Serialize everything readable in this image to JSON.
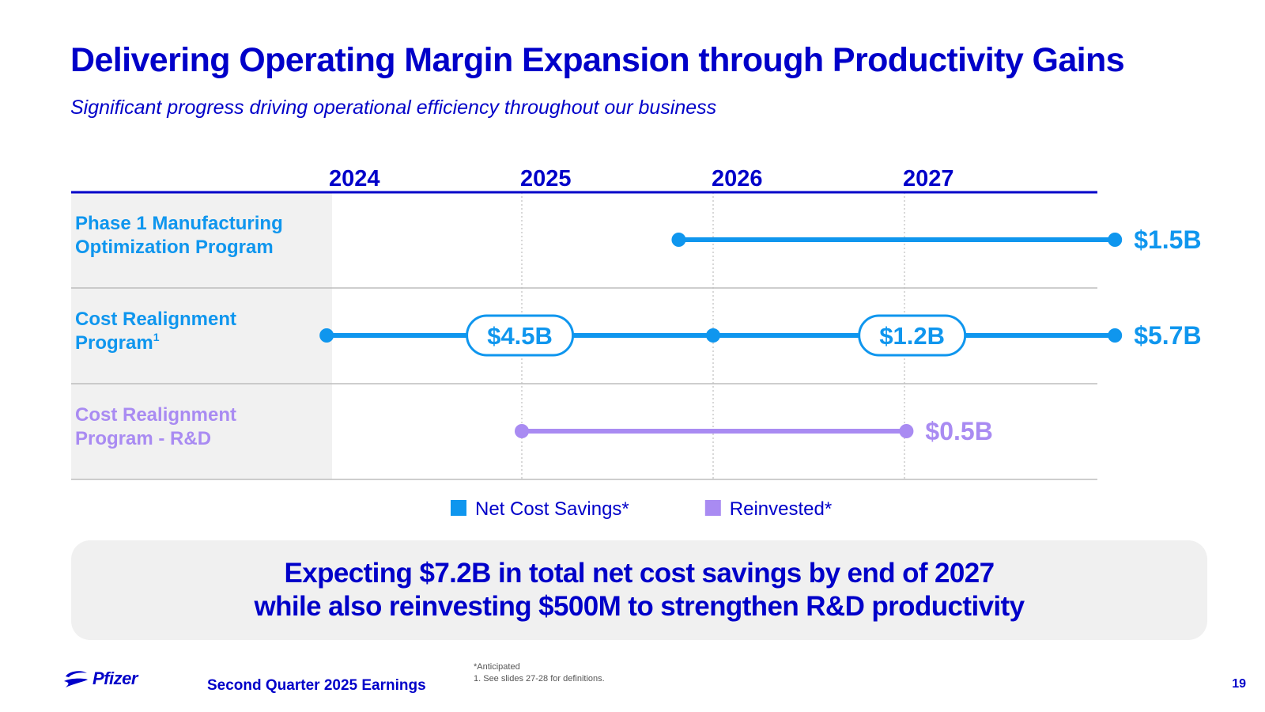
{
  "slide": {
    "title": "Delivering Operating Margin Expansion through Productivity Gains",
    "subtitle": "Significant progress driving operational efficiency throughout our business",
    "callout_line1": "Expecting $7.2B in total net cost savings by end of 2027",
    "callout_line2": "while also reinvesting $500M to strengthen R&D productivity",
    "company": "Pfizer",
    "event": "Second Quarter 2025 Earnings",
    "footnote_anticipated": "*Anticipated",
    "footnote_1": "1.  See slides 27-28 for definitions.",
    "page_number": "19"
  },
  "chart_data": {
    "type": "timeline",
    "years": [
      "2024",
      "2025",
      "2026",
      "2027"
    ],
    "x_range": [
      2024,
      2028
    ],
    "rows": [
      {
        "label_lines": [
          "Phase 1 Manufacturing",
          "Optimization Program"
        ],
        "label_sup": "",
        "category": "Net Cost Savings*",
        "start": 2025.82,
        "end": 2028.1,
        "mid_points": [],
        "segment_labels": [],
        "total": "$1.5B"
      },
      {
        "label_lines": [
          "Cost Realignment",
          "Program"
        ],
        "label_sup": "1",
        "category": "Net Cost Savings*",
        "start": 2023.98,
        "end": 2028.1,
        "mid_points": [
          2026.0
        ],
        "segment_labels": [
          {
            "text": "$4.5B",
            "at": 2024.99
          },
          {
            "text": "$1.2B",
            "at": 2027.04
          }
        ],
        "total": "$5.7B"
      },
      {
        "label_lines": [
          "Cost Realignment",
          "Program - R&D"
        ],
        "label_sup": "",
        "category": "Reinvested*",
        "start": 2025.0,
        "end": 2027.01,
        "mid_points": [],
        "segment_labels": [],
        "total": "$0.5B"
      }
    ],
    "legend": [
      {
        "name": "Net Cost Savings*",
        "color": "#0f96ee"
      },
      {
        "name": "Reinvested*",
        "color": "#a98bf2"
      }
    ],
    "colors": {
      "header_line": "#0000c9",
      "row_label_bg": "#f1f1f1",
      "divider": "#bdbdbd",
      "gridline": "#b0b0b0",
      "net_label": "#0f96ee",
      "reinvested_label": "#a98bf2"
    }
  }
}
